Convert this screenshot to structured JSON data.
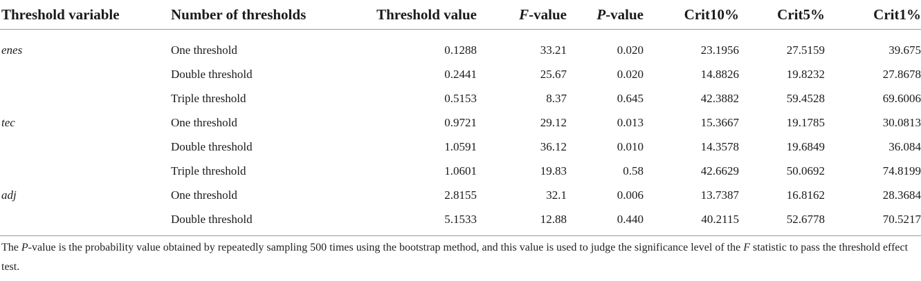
{
  "table": {
    "headers": {
      "threshold_variable": "Threshold variable",
      "number_of_thresholds": "Number of thresholds",
      "threshold_value": "Threshold value",
      "f_value_italic": "F",
      "f_value_rest": "-value",
      "p_value_italic": "P",
      "p_value_rest": "-value",
      "crit10": "Crit10%",
      "crit5": "Crit5%",
      "crit1": "Crit1%"
    },
    "rows": [
      {
        "variable": "enes",
        "number": "One threshold",
        "threshold": "0.1288",
        "f": "33.21",
        "p": "0.020",
        "c10": "23.1956",
        "c5": "27.5159",
        "c1": "39.675"
      },
      {
        "variable": "",
        "number": "Double threshold",
        "threshold": "0.2441",
        "f": "25.67",
        "p": "0.020",
        "c10": "14.8826",
        "c5": "19.8232",
        "c1": "27.8678"
      },
      {
        "variable": "",
        "number": "Triple threshold",
        "threshold": "0.5153",
        "f": "8.37",
        "p": "0.645",
        "c10": "42.3882",
        "c5": "59.4528",
        "c1": "69.6006"
      },
      {
        "variable": "tec",
        "number": "One threshold",
        "threshold": "0.9721",
        "f": "29.12",
        "p": "0.013",
        "c10": "15.3667",
        "c5": "19.1785",
        "c1": "30.0813"
      },
      {
        "variable": "",
        "number": "Double threshold",
        "threshold": "1.0591",
        "f": "36.12",
        "p": "0.010",
        "c10": "14.3578",
        "c5": "19.6849",
        "c1": "36.084"
      },
      {
        "variable": "",
        "number": "Triple threshold",
        "threshold": "1.0601",
        "f": "19.83",
        "p": "0.58",
        "c10": "42.6629",
        "c5": "50.0692",
        "c1": "74.8199"
      },
      {
        "variable": "adj",
        "number": "One threshold",
        "threshold": "2.8155",
        "f": "32.1",
        "p": "0.006",
        "c10": "13.7387",
        "c5": "16.8162",
        "c1": "28.3684"
      },
      {
        "variable": "",
        "number": "Double threshold",
        "threshold": "5.1533",
        "f": "12.88",
        "p": "0.440",
        "c10": "40.2115",
        "c5": "52.6778",
        "c1": "70.5217"
      }
    ]
  },
  "note": {
    "p1": "The ",
    "p_italic": "P",
    "p2": "-value is the probability value obtained by repeatedly sampling 500 times using the bootstrap method, and this value is used to judge the significance level of the ",
    "f_italic": "F",
    "p3": " statistic to pass the threshold effect test."
  }
}
